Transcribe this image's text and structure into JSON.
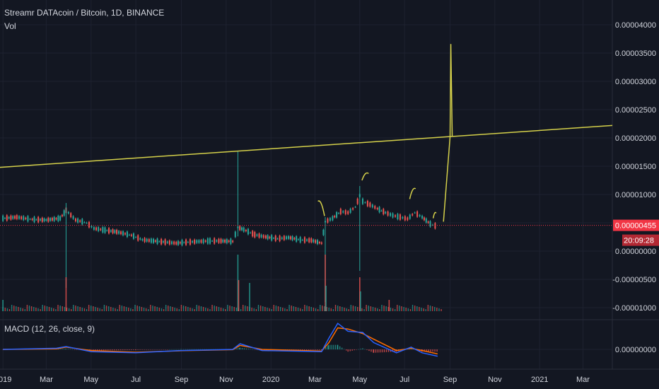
{
  "header": {
    "symbol_line": "Streamr DATAcoin / Bitcoin, 1D, BINANCE",
    "volume_label": "Vol",
    "macd_label": "MACD (12, 26, close, 9)"
  },
  "price_badge": {
    "price": "0.00000455",
    "countdown": "20:09:28"
  },
  "colors": {
    "background": "#131722",
    "grid": "#1e2230",
    "up": "#26a69a",
    "down": "#ef5350",
    "trendline": "#d4d04a",
    "macd_line": "#2962ff",
    "signal_line": "#ff6d00",
    "price_line": "#f23645",
    "axis_text": "#d1d4dc"
  },
  "chart_data": [
    {
      "type": "line",
      "panel": "price",
      "title": "Streamr DATAcoin / Bitcoin, 1D, BINANCE",
      "y_tick_labels": [
        "0.00004000",
        "0.00003500",
        "0.00003000",
        "0.00002500",
        "0.00002000",
        "0.00001500",
        "0.00001000",
        "0.00000500",
        "0.00000000",
        "-0.00000500",
        "-0.00001000"
      ],
      "ylim": [
        -1.05e-05,
        4.15e-05
      ],
      "x_tick_labels": [
        "2019",
        "Mar",
        "May",
        "Jul",
        "Sep",
        "Nov",
        "2020",
        "Mar",
        "May",
        "Jul",
        "Sep",
        "Nov",
        "2021",
        "Mar"
      ],
      "x_tick_dates": [
        "2019-01-01",
        "2019-03-01",
        "2019-05-01",
        "2019-07-01",
        "2019-09-01",
        "2019-11-01",
        "2020-01-01",
        "2020-03-01",
        "2020-05-01",
        "2020-07-01",
        "2020-09-01",
        "2020-11-01",
        "2021-01-01",
        "2021-03-01"
      ],
      "xlim": [
        "2018-12-28",
        "2021-04-10"
      ],
      "last_price": 4.55e-06,
      "series": [
        {
          "x": [
            "2019-01-01",
            "2019-01-20",
            "2019-02-10",
            "2019-03-01",
            "2019-03-20",
            "2019-03-28",
            "2019-04-10",
            "2019-04-25",
            "2019-05-05",
            "2019-05-20",
            "2019-06-05",
            "2019-06-25",
            "2019-07-10",
            "2019-07-25",
            "2019-08-10",
            "2019-08-25",
            "2019-09-10",
            "2019-09-25",
            "2019-10-10",
            "2019-10-25",
            "2019-11-10",
            "2019-11-17",
            "2019-11-25",
            "2019-12-10",
            "2019-12-25",
            "2020-01-10",
            "2020-01-25",
            "2020-02-10",
            "2020-02-25",
            "2020-03-10",
            "2020-03-15",
            "2020-03-25",
            "2020-04-05",
            "2020-04-15",
            "2020-04-25",
            "2020-05-01",
            "2020-05-05",
            "2020-05-15",
            "2020-05-25",
            "2020-06-05",
            "2020-06-15",
            "2020-06-25",
            "2020-07-05",
            "2020-07-15",
            "2020-07-25",
            "2020-08-05",
            "2020-08-15"
          ],
          "values": [
            5.8e-06,
            6e-06,
            5.6e-06,
            5.5e-06,
            5.8e-06,
            7.2e-06,
            5.5e-06,
            5e-06,
            4e-06,
            3.7e-06,
            3.4e-06,
            2.8e-06,
            2e-06,
            1.8e-06,
            1.6e-06,
            1.4e-06,
            1.6e-06,
            1.7e-06,
            1.8e-06,
            1.8e-06,
            1.7e-06,
            4.2e-06,
            3.8e-06,
            2.9e-06,
            2.5e-06,
            2.2e-06,
            2.4e-06,
            2e-06,
            1.9e-06,
            1.4e-06,
            5.2e-06,
            5.8e-06,
            7e-06,
            6.8e-06,
            7.8e-06,
            9.8e-06,
            8.8e-06,
            8.2e-06,
            7.5e-06,
            6.8e-06,
            6.3e-06,
            6e-06,
            5.7e-06,
            6.8e-06,
            6e-06,
            4.8e-06,
            4.3e-06
          ]
        }
      ],
      "spike_highs": [
        {
          "date": "2019-03-28",
          "value": 8.5e-06
        },
        {
          "date": "2019-11-17",
          "value": 1.76e-05
        },
        {
          "date": "2020-03-15",
          "value": 6e-06
        },
        {
          "date": "2020-05-01",
          "value": 1.15e-05
        }
      ],
      "drawings": {
        "trendline": {
          "from": {
            "date": "2018-12-28",
            "value": 1.48e-05
          },
          "to": {
            "date": "2021-04-10",
            "value": 2.22e-05
          }
        },
        "projection_up": {
          "from": {
            "date": "2020-08-23",
            "value": 5.2e-06
          },
          "to": {
            "date": "2020-09-01",
            "value": 2.02e-05
          }
        },
        "projection_spike": {
          "from": {
            "date": "2020-09-01",
            "value": 2.02e-05
          },
          "peak": {
            "date": "2020-09-02",
            "value": 3.66e-05
          }
        },
        "arcs": [
          {
            "from": {
              "date": "2020-03-05",
              "value": 8.8e-06
            },
            "to": {
              "date": "2020-03-14",
              "value": 6.2e-06
            }
          },
          {
            "from": {
              "date": "2020-05-04",
              "value": 1.25e-05
            },
            "to": {
              "date": "2020-05-13",
              "value": 1.37e-05
            }
          },
          {
            "from": {
              "date": "2020-07-08",
              "value": 9.2e-06
            },
            "to": {
              "date": "2020-07-16",
              "value": 1.1e-05
            }
          },
          {
            "from": {
              "date": "2020-08-09",
              "value": 5.8e-06
            },
            "to": {
              "date": "2020-08-13",
              "value": 6.7e-06
            }
          }
        ]
      }
    },
    {
      "type": "bar",
      "panel": "volume",
      "title": "Vol",
      "x": [
        "2019-01-01",
        "2019-03-28",
        "2019-11-17",
        "2019-11-18",
        "2019-12-03",
        "2020-03-15",
        "2020-03-16",
        "2020-05-01",
        "2020-05-02",
        "2020-06-10"
      ],
      "values": [
        0.2,
        0.6,
        1.0,
        0.55,
        0.5,
        1.0,
        0.45,
        0.6,
        0.35,
        0.2
      ]
    },
    {
      "type": "line",
      "panel": "macd",
      "title": "MACD (12, 26, close, 9)",
      "y_tick_labels": [
        "0.00000000"
      ],
      "series": [
        {
          "name": "MACD",
          "x": [
            "2019-01-01",
            "2019-03-15",
            "2019-03-28",
            "2019-05-01",
            "2019-07-01",
            "2019-09-01",
            "2019-11-10",
            "2019-11-20",
            "2019-12-20",
            "2020-03-10",
            "2020-03-20",
            "2020-04-01",
            "2020-04-15",
            "2020-05-05",
            "2020-05-20",
            "2020-06-20",
            "2020-07-10",
            "2020-07-25",
            "2020-08-15"
          ],
          "values": [
            0.0,
            0.1,
            0.25,
            -0.2,
            -0.3,
            -0.1,
            0.0,
            0.5,
            -0.1,
            -0.2,
            1.0,
            2.3,
            1.6,
            1.5,
            0.6,
            -0.3,
            0.2,
            -0.3,
            -0.6
          ]
        },
        {
          "name": "Signal",
          "x": [
            "2019-01-01",
            "2019-03-15",
            "2019-03-28",
            "2019-05-01",
            "2019-07-01",
            "2019-09-01",
            "2019-11-10",
            "2019-11-20",
            "2019-12-20",
            "2020-03-10",
            "2020-03-20",
            "2020-04-01",
            "2020-04-15",
            "2020-05-05",
            "2020-05-20",
            "2020-06-20",
            "2020-07-10",
            "2020-07-25",
            "2020-08-15"
          ],
          "values": [
            0.0,
            0.05,
            0.2,
            -0.1,
            -0.25,
            -0.12,
            -0.02,
            0.35,
            0.0,
            -0.15,
            0.6,
            1.9,
            1.8,
            1.4,
            0.9,
            -0.1,
            0.1,
            -0.1,
            -0.4
          ]
        }
      ]
    }
  ]
}
